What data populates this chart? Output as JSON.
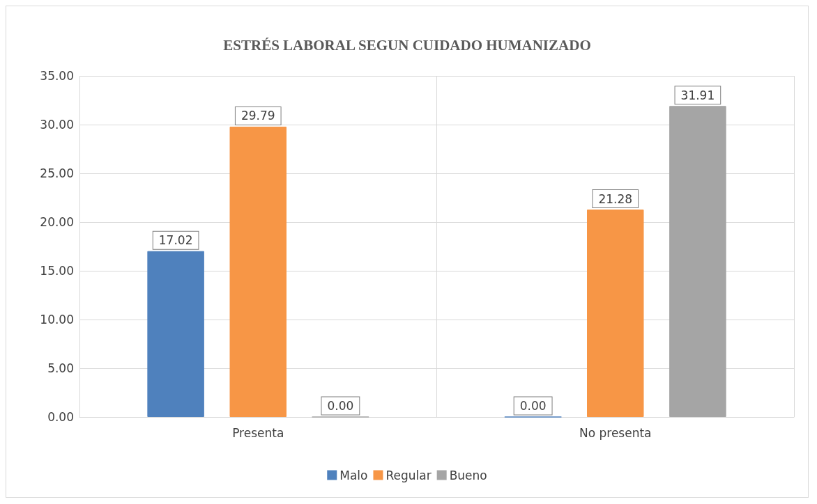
{
  "chart_data": {
    "type": "bar",
    "title": "ESTRÉS LABORAL SEGUN CUIDADO HUMANIZADO",
    "categories": [
      "Presenta",
      "No presenta"
    ],
    "series": [
      {
        "name": "Malo",
        "color": "#4f81bd",
        "values": [
          17.02,
          0.0
        ],
        "value_labels": [
          "17.02",
          "0.00"
        ]
      },
      {
        "name": "Regular",
        "color": "#f79646",
        "values": [
          29.79,
          21.28
        ],
        "value_labels": [
          "29.79",
          "21.28"
        ]
      },
      {
        "name": "Bueno",
        "color": "#a5a5a5",
        "values": [
          0.0,
          31.91
        ],
        "value_labels": [
          "0.00",
          "31.91"
        ]
      }
    ],
    "ylim": [
      0,
      35
    ],
    "yticks": [
      {
        "value": 0,
        "label": "0.00"
      },
      {
        "value": 5,
        "label": "5.00"
      },
      {
        "value": 10,
        "label": "10.00"
      },
      {
        "value": 15,
        "label": "15.00"
      },
      {
        "value": 20,
        "label": "20.00"
      },
      {
        "value": 25,
        "label": "25.00"
      },
      {
        "value": 30,
        "label": "30.00"
      },
      {
        "value": 35,
        "label": "35.00"
      }
    ],
    "grid": true,
    "legend": "bottom"
  }
}
